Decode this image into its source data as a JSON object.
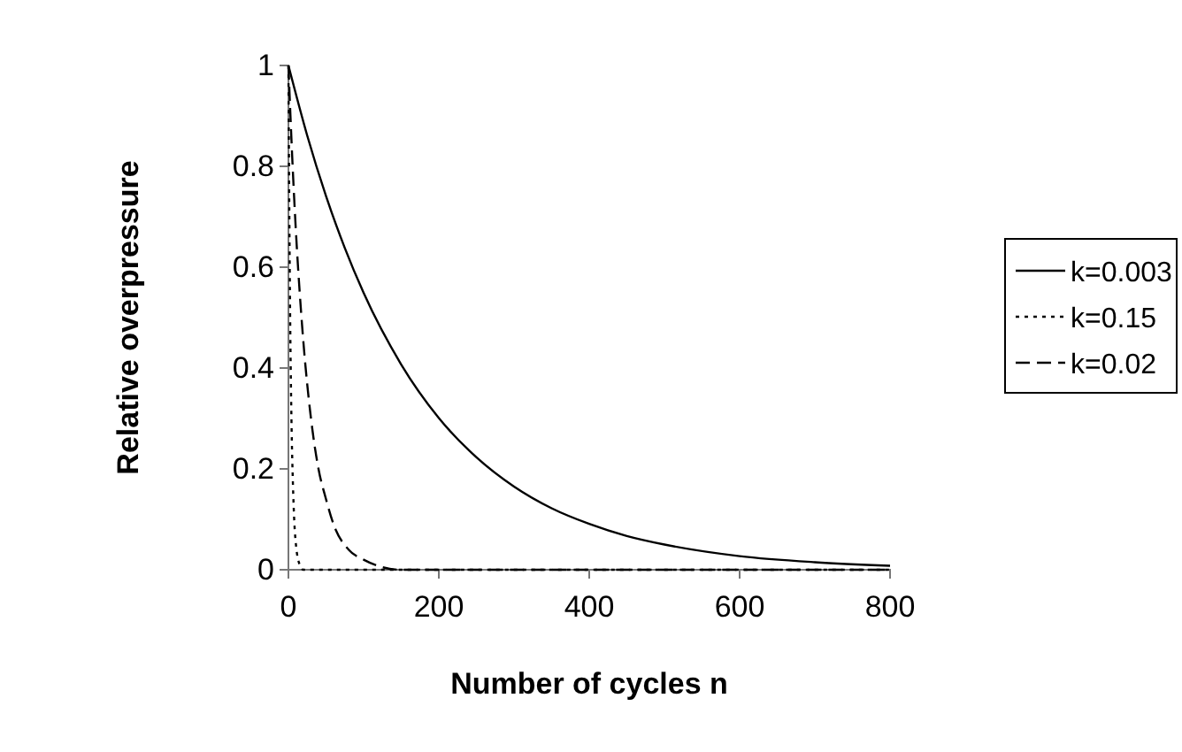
{
  "chart_data": {
    "type": "line",
    "xlabel": "Number of cycles n",
    "ylabel": "Relative overpressure",
    "xlim": [
      0,
      800
    ],
    "xticks": [
      0,
      200,
      400,
      600,
      800
    ],
    "ylim": [
      0,
      1
    ],
    "yticks": [
      0,
      0.2,
      0.4,
      0.6,
      0.8,
      1
    ],
    "grid": false,
    "legend": "right",
    "marker": "none",
    "series": [
      {
        "name": "k=0.003",
        "color": "#000000",
        "line_style": "solid",
        "x": [
          0,
          25,
          50,
          75,
          100,
          150,
          200,
          250,
          300,
          350,
          400,
          450,
          500,
          600,
          700,
          800
        ],
        "values": [
          1,
          0.861,
          0.741,
          0.638,
          0.549,
          0.407,
          0.301,
          0.223,
          0.165,
          0.122,
          0.091,
          0.067,
          0.05,
          0.027,
          0.015,
          0.008
        ]
      },
      {
        "name": "k=0.15",
        "color": "#000000",
        "line_style": "dotted",
        "x": [
          0,
          2,
          4,
          6,
          8,
          10,
          15,
          20,
          800
        ],
        "values": [
          1,
          0.55,
          0.3,
          0.17,
          0.09,
          0.05,
          0.01,
          0,
          0
        ]
      },
      {
        "name": "k=0.02",
        "color": "#000000",
        "line_style": "dashed",
        "x": [
          0,
          5,
          10,
          15,
          20,
          30,
          40,
          50,
          60,
          80,
          100,
          150,
          200,
          800
        ],
        "values": [
          1,
          0.82,
          0.67,
          0.55,
          0.45,
          0.3,
          0.2,
          0.14,
          0.09,
          0.04,
          0.02,
          0,
          0,
          0
        ]
      }
    ]
  }
}
